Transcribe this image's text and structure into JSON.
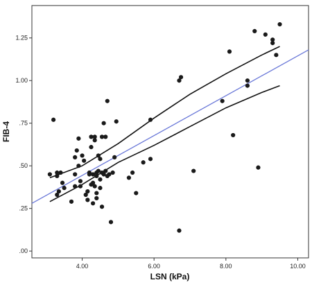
{
  "chart_data": {
    "type": "scatter",
    "xlabel": "LSN (kPa)",
    "ylabel": "FIB-4",
    "xlim": [
      2.6,
      10.3
    ],
    "ylim": [
      -0.04,
      1.44
    ],
    "x_ticks": [
      4,
      6,
      8,
      10
    ],
    "x_tick_labels": [
      "4.00",
      "6.00",
      "8.00",
      "10.00"
    ],
    "y_ticks": [
      0,
      0.25,
      0.5,
      0.75,
      1.0,
      1.25
    ],
    "y_tick_labels": [
      ".00",
      ".25",
      ".50",
      ".75",
      "1.00",
      "1.25"
    ],
    "grid": false,
    "colors": {
      "points": "#1a1a1a",
      "fit_line": "#6a78d8",
      "ci_lines": "#111111",
      "frame": "#333333"
    },
    "points": [
      [
        3.1,
        0.45
      ],
      [
        3.2,
        0.77
      ],
      [
        3.3,
        0.46
      ],
      [
        3.3,
        0.44
      ],
      [
        3.35,
        0.35
      ],
      [
        3.4,
        0.46
      ],
      [
        3.45,
        0.4
      ],
      [
        3.5,
        0.37
      ],
      [
        3.3,
        0.33
      ],
      [
        3.7,
        0.29
      ],
      [
        3.8,
        0.38
      ],
      [
        3.8,
        0.45
      ],
      [
        3.8,
        0.55
      ],
      [
        3.85,
        0.59
      ],
      [
        3.9,
        0.66
      ],
      [
        3.9,
        0.5
      ],
      [
        3.95,
        0.38
      ],
      [
        3.95,
        0.41
      ],
      [
        4.0,
        0.56
      ],
      [
        4.05,
        0.53
      ],
      [
        4.1,
        0.33
      ],
      [
        4.15,
        0.3
      ],
      [
        4.15,
        0.35
      ],
      [
        4.2,
        0.45
      ],
      [
        4.2,
        0.46
      ],
      [
        4.25,
        0.39
      ],
      [
        4.25,
        0.61
      ],
      [
        4.25,
        0.67
      ],
      [
        4.3,
        0.28
      ],
      [
        4.3,
        0.4
      ],
      [
        4.3,
        0.45
      ],
      [
        4.35,
        0.67
      ],
      [
        4.35,
        0.65
      ],
      [
        4.35,
        0.38
      ],
      [
        4.4,
        0.31
      ],
      [
        4.4,
        0.34
      ],
      [
        4.4,
        0.44
      ],
      [
        4.4,
        0.46
      ],
      [
        4.45,
        0.56
      ],
      [
        4.45,
        0.47
      ],
      [
        4.5,
        0.42
      ],
      [
        4.5,
        0.37
      ],
      [
        4.5,
        0.54
      ],
      [
        4.55,
        0.26
      ],
      [
        4.55,
        0.46
      ],
      [
        4.55,
        0.67
      ],
      [
        4.6,
        0.45
      ],
      [
        4.6,
        0.75
      ],
      [
        4.65,
        0.47
      ],
      [
        4.65,
        0.67
      ],
      [
        4.7,
        0.44
      ],
      [
        4.7,
        0.88
      ],
      [
        4.75,
        0.45
      ],
      [
        4.8,
        0.17
      ],
      [
        4.85,
        0.46
      ],
      [
        4.9,
        0.55
      ],
      [
        4.95,
        0.76
      ],
      [
        5.3,
        0.43
      ],
      [
        5.4,
        0.46
      ],
      [
        5.5,
        0.34
      ],
      [
        5.7,
        0.52
      ],
      [
        5.9,
        0.77
      ],
      [
        5.9,
        0.54
      ],
      [
        6.7,
        1.0
      ],
      [
        6.75,
        1.02
      ],
      [
        6.7,
        0.12
      ],
      [
        7.1,
        0.47
      ],
      [
        7.9,
        0.88
      ],
      [
        8.1,
        1.17
      ],
      [
        8.2,
        0.68
      ],
      [
        8.6,
        1.0
      ],
      [
        8.6,
        0.97
      ],
      [
        8.9,
        0.49
      ],
      [
        8.8,
        1.29
      ],
      [
        9.1,
        1.27
      ],
      [
        9.3,
        1.24
      ],
      [
        9.3,
        1.22
      ],
      [
        9.4,
        1.15
      ],
      [
        9.5,
        1.33
      ]
    ],
    "fit_line": {
      "x": [
        2.6,
        10.3
      ],
      "y": [
        0.28,
        1.18
      ]
    },
    "ci_upper": {
      "x": [
        3.1,
        4.0,
        5.0,
        6.0,
        7.0,
        8.0,
        9.0,
        9.5
      ],
      "y": [
        0.43,
        0.5,
        0.63,
        0.78,
        0.92,
        1.04,
        1.15,
        1.2
      ]
    },
    "ci_lower": {
      "x": [
        3.1,
        4.0,
        5.0,
        6.0,
        7.0,
        8.0,
        9.0,
        9.5
      ],
      "y": [
        0.29,
        0.39,
        0.52,
        0.62,
        0.73,
        0.84,
        0.93,
        0.97
      ]
    }
  }
}
